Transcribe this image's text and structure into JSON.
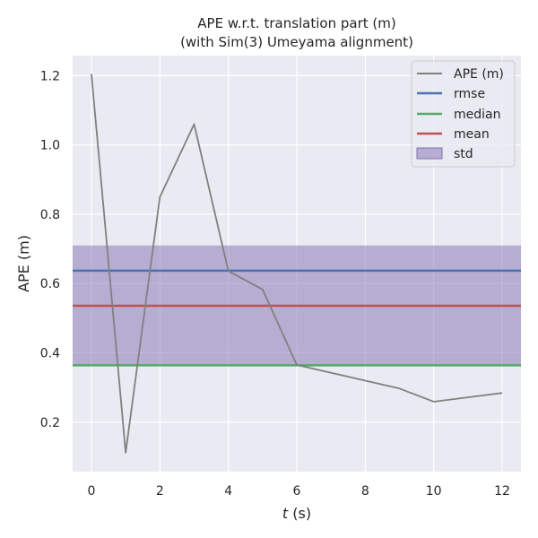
{
  "chart_data": {
    "type": "line",
    "title_line1": "APE w.r.t. translation part (m)",
    "title_line2": "(with Sim(3) Umeyama alignment)",
    "xlabel_var": "t",
    "xlabel_unit": " (s)",
    "ylabel": "APE (m)",
    "xlim": [
      -0.55,
      12.55
    ],
    "ylim": [
      0.057,
      1.258
    ],
    "xticks": [
      0,
      2,
      4,
      6,
      8,
      10,
      12
    ],
    "yticks": [
      0.2,
      0.4,
      0.6,
      0.8,
      1.0,
      1.2
    ],
    "ytick_labels": [
      "0.2",
      "0.4",
      "0.6",
      "0.8",
      "1.0",
      "1.2"
    ],
    "grid": true,
    "legend_position": "top-right",
    "series": [
      {
        "name": "APE (m)",
        "color": "#808080",
        "x": [
          0,
          1,
          2,
          3,
          4,
          5,
          6,
          9,
          10,
          12
        ],
        "y": [
          1.205,
          0.112,
          0.85,
          1.06,
          0.636,
          0.583,
          0.365,
          0.297,
          0.259,
          0.284
        ]
      }
    ],
    "stats": {
      "rmse": {
        "label": "rmse",
        "value": 0.637,
        "color": "#4c72b0"
      },
      "median": {
        "label": "median",
        "value": 0.364,
        "color": "#55a868"
      },
      "mean": {
        "label": "mean",
        "value": 0.536,
        "color": "#c44e52"
      },
      "std": {
        "label": "std",
        "lower": 0.362,
        "upper": 0.71,
        "color": "#8172b2"
      }
    }
  }
}
